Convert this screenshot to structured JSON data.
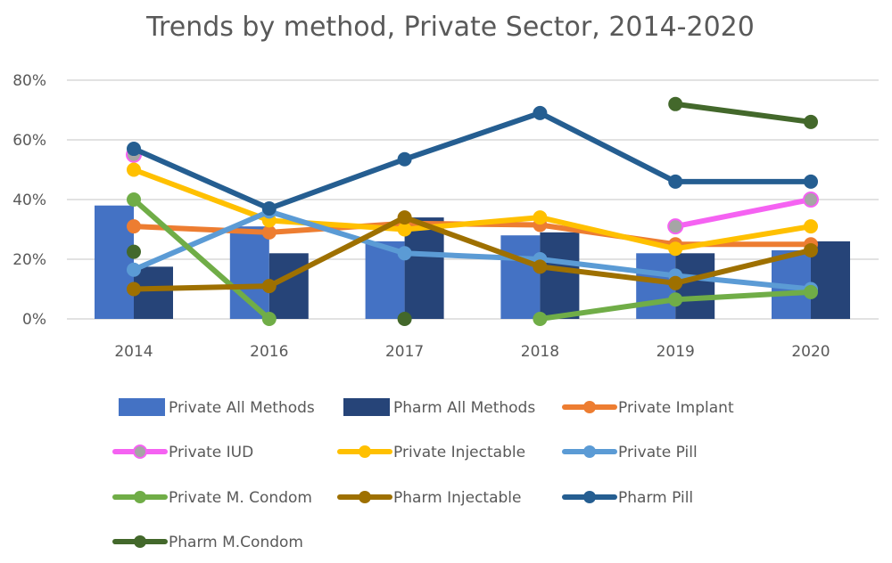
{
  "chart_data": {
    "type": "bar+line",
    "title": "Trends by method, Private Sector, 2014-2020",
    "xlabel": "",
    "ylabel": "",
    "categories": [
      "2014",
      "2016",
      "2017",
      "2018",
      "2019",
      "2020"
    ],
    "ylim": [
      0,
      80
    ],
    "yticks": [
      "0%",
      "20%",
      "40%",
      "60%",
      "80%"
    ],
    "ytick_values": [
      0,
      20,
      40,
      60,
      80
    ],
    "grid": true,
    "legend_position": "bottom",
    "series": [
      {
        "name": "Private All Methods",
        "kind": "bar",
        "color": "#4472C4",
        "values": [
          38,
          31,
          26,
          28,
          22,
          23
        ]
      },
      {
        "name": "Pharm All Methods",
        "kind": "bar",
        "color": "#264478",
        "values": [
          17.5,
          22,
          34,
          29,
          22,
          26
        ]
      },
      {
        "name": "Private Implant",
        "kind": "line",
        "color": "#ED7D31",
        "marker": "#ED7D31",
        "values": [
          31,
          29,
          32,
          31.5,
          25,
          25
        ]
      },
      {
        "name": "Private IUD",
        "kind": "line",
        "color": "#F562F2",
        "marker": "#A5A5A5",
        "values": [
          55,
          null,
          null,
          null,
          31,
          40
        ]
      },
      {
        "name": "Private Injectable",
        "kind": "line",
        "color": "#FFC000",
        "marker": "#FFC000",
        "values": [
          50,
          33,
          30,
          34,
          23.5,
          31
        ]
      },
      {
        "name": "Private Pill",
        "kind": "line",
        "color": "#5B9BD5",
        "marker": "#5B9BD5",
        "values": [
          16.5,
          36,
          22,
          20,
          14.5,
          10
        ]
      },
      {
        "name": "Private M. Condom",
        "kind": "line",
        "color": "#70AD47",
        "marker": "#70AD47",
        "values": [
          40,
          0,
          null,
          0,
          6.5,
          9
        ]
      },
      {
        "name": "Pharm Injectable",
        "kind": "line",
        "color": "#9E7000",
        "marker": "#9E7000",
        "values": [
          10,
          11,
          34,
          17.5,
          12,
          23
        ]
      },
      {
        "name": "Pharm Pill",
        "kind": "line",
        "color": "#255E91",
        "marker": "#255E91",
        "values": [
          57,
          37,
          53.5,
          69,
          46,
          46
        ]
      },
      {
        "name": "Pharm M.Condom",
        "kind": "line",
        "color": "#43682B",
        "marker": "#43682B",
        "values": [
          22.5,
          null,
          0,
          null,
          72,
          66
        ]
      }
    ]
  }
}
